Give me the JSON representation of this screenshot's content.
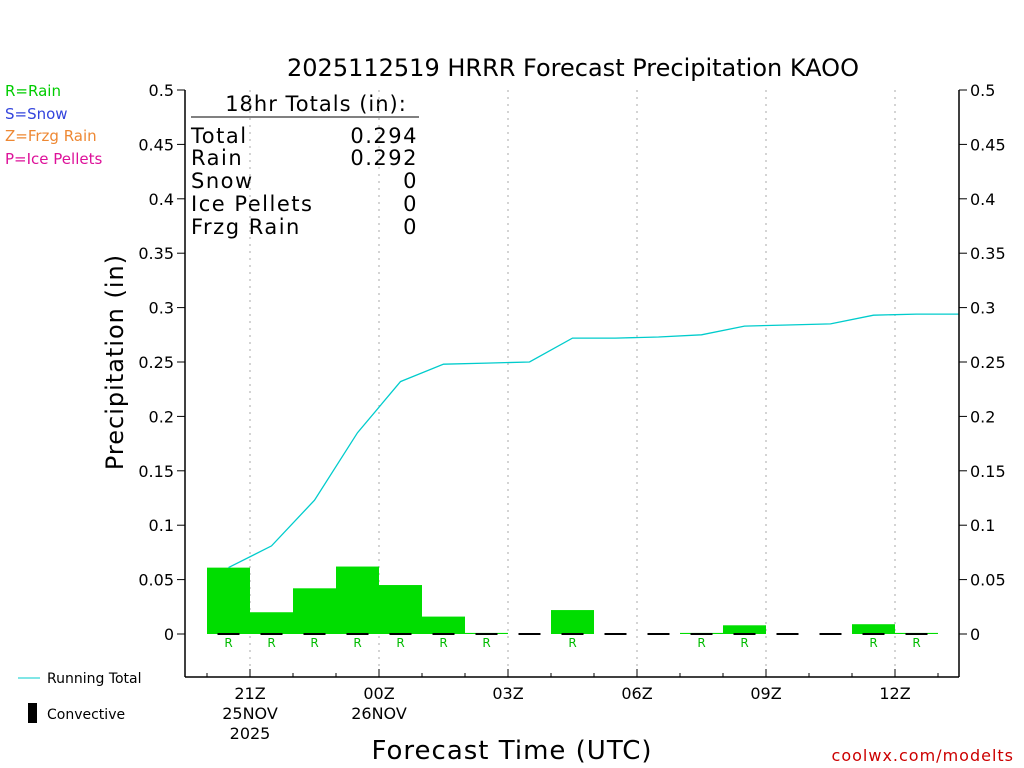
{
  "chart_data": {
    "type": "bar",
    "title": "2025112519 HRRR Forecast Precipitation KAOO",
    "xlabel": "Forecast Time (UTC)",
    "ylabel": "Precipitation (in)",
    "ylim": [
      0,
      0.5
    ],
    "y_ticks": [
      0,
      0.05,
      0.1,
      0.15,
      0.2,
      0.25,
      0.3,
      0.35,
      0.4,
      0.45,
      0.5
    ],
    "y_tick_labels": [
      "0",
      "0.05",
      "0.1",
      "0.15",
      "0.2",
      "0.25",
      "0.3",
      "0.35",
      "0.4",
      "0.45",
      "0.5"
    ],
    "x_unit": "hours from 20Z 25NOV2025",
    "xlim": [
      -1,
      17
    ],
    "x_ticks": [
      {
        "h": 1,
        "label": "21Z",
        "sub1": "25NOV",
        "sub2": "2025"
      },
      {
        "h": 4,
        "label": "00Z",
        "sub1": "26NOV",
        "sub2": ""
      },
      {
        "h": 7,
        "label": "03Z",
        "sub1": "",
        "sub2": ""
      },
      {
        "h": 10,
        "label": "06Z",
        "sub1": "",
        "sub2": ""
      },
      {
        "h": 13,
        "label": "09Z",
        "sub1": "",
        "sub2": ""
      },
      {
        "h": 16,
        "label": "12Z",
        "sub1": "",
        "sub2": ""
      }
    ],
    "grid": "vertical dotted",
    "series": [
      {
        "name": "Hourly Precipitation",
        "kind": "bar",
        "color": "#00dd00",
        "x": [
          0,
          1,
          2,
          3,
          4,
          5,
          6,
          7,
          8,
          9,
          10,
          11,
          12,
          13,
          14,
          15,
          16
        ],
        "values": [
          0.061,
          0.02,
          0.042,
          0.062,
          0.045,
          0.016,
          0.001,
          0.0,
          0.022,
          0.0,
          0.0,
          0.001,
          0.008,
          0.0,
          0.0,
          0.009,
          0.001
        ],
        "ptype": [
          "R",
          "R",
          "R",
          "R",
          "R",
          "R",
          "R",
          "",
          "R",
          "",
          "",
          "R",
          "R",
          "",
          "",
          "R",
          "R"
        ]
      },
      {
        "name": "Running Total",
        "kind": "line",
        "color": "#00cccc",
        "x": [
          0,
          1,
          2,
          3,
          4,
          5,
          6,
          7,
          8,
          9,
          10,
          11,
          12,
          13,
          14,
          15,
          16,
          17
        ],
        "values": [
          0.061,
          0.081,
          0.123,
          0.185,
          0.232,
          0.248,
          0.249,
          0.25,
          0.272,
          0.272,
          0.273,
          0.275,
          0.283,
          0.284,
          0.285,
          0.293,
          0.294,
          0.294
        ]
      }
    ],
    "ptype_label_color": "#00bb00",
    "convective_color": "#000000"
  },
  "totals": {
    "header": "18hr Totals (in):",
    "rows": [
      {
        "label": "Total",
        "value": "0.294"
      },
      {
        "label": "Rain",
        "value": "0.292"
      },
      {
        "label": "Snow",
        "value": "0"
      },
      {
        "label": "Ice Pellets",
        "value": "0"
      },
      {
        "label": "Frzg Rain",
        "value": "0"
      }
    ]
  },
  "ptype_legend": [
    {
      "text": "R=Rain",
      "color": "#00cc00"
    },
    {
      "text": "S=Snow",
      "color": "#3344dd"
    },
    {
      "text": "Z=Frzg Rain",
      "color": "#ee8833"
    },
    {
      "text": "P=Ice Pellets",
      "color": "#dd1199"
    }
  ],
  "series_legend": {
    "running_total": "Running Total",
    "convective": "Convective"
  },
  "credit": "coolwx.com/modelts",
  "colors": {
    "axis": "#000000",
    "grid": "#aaaaaa",
    "credit": "#cc0000"
  }
}
